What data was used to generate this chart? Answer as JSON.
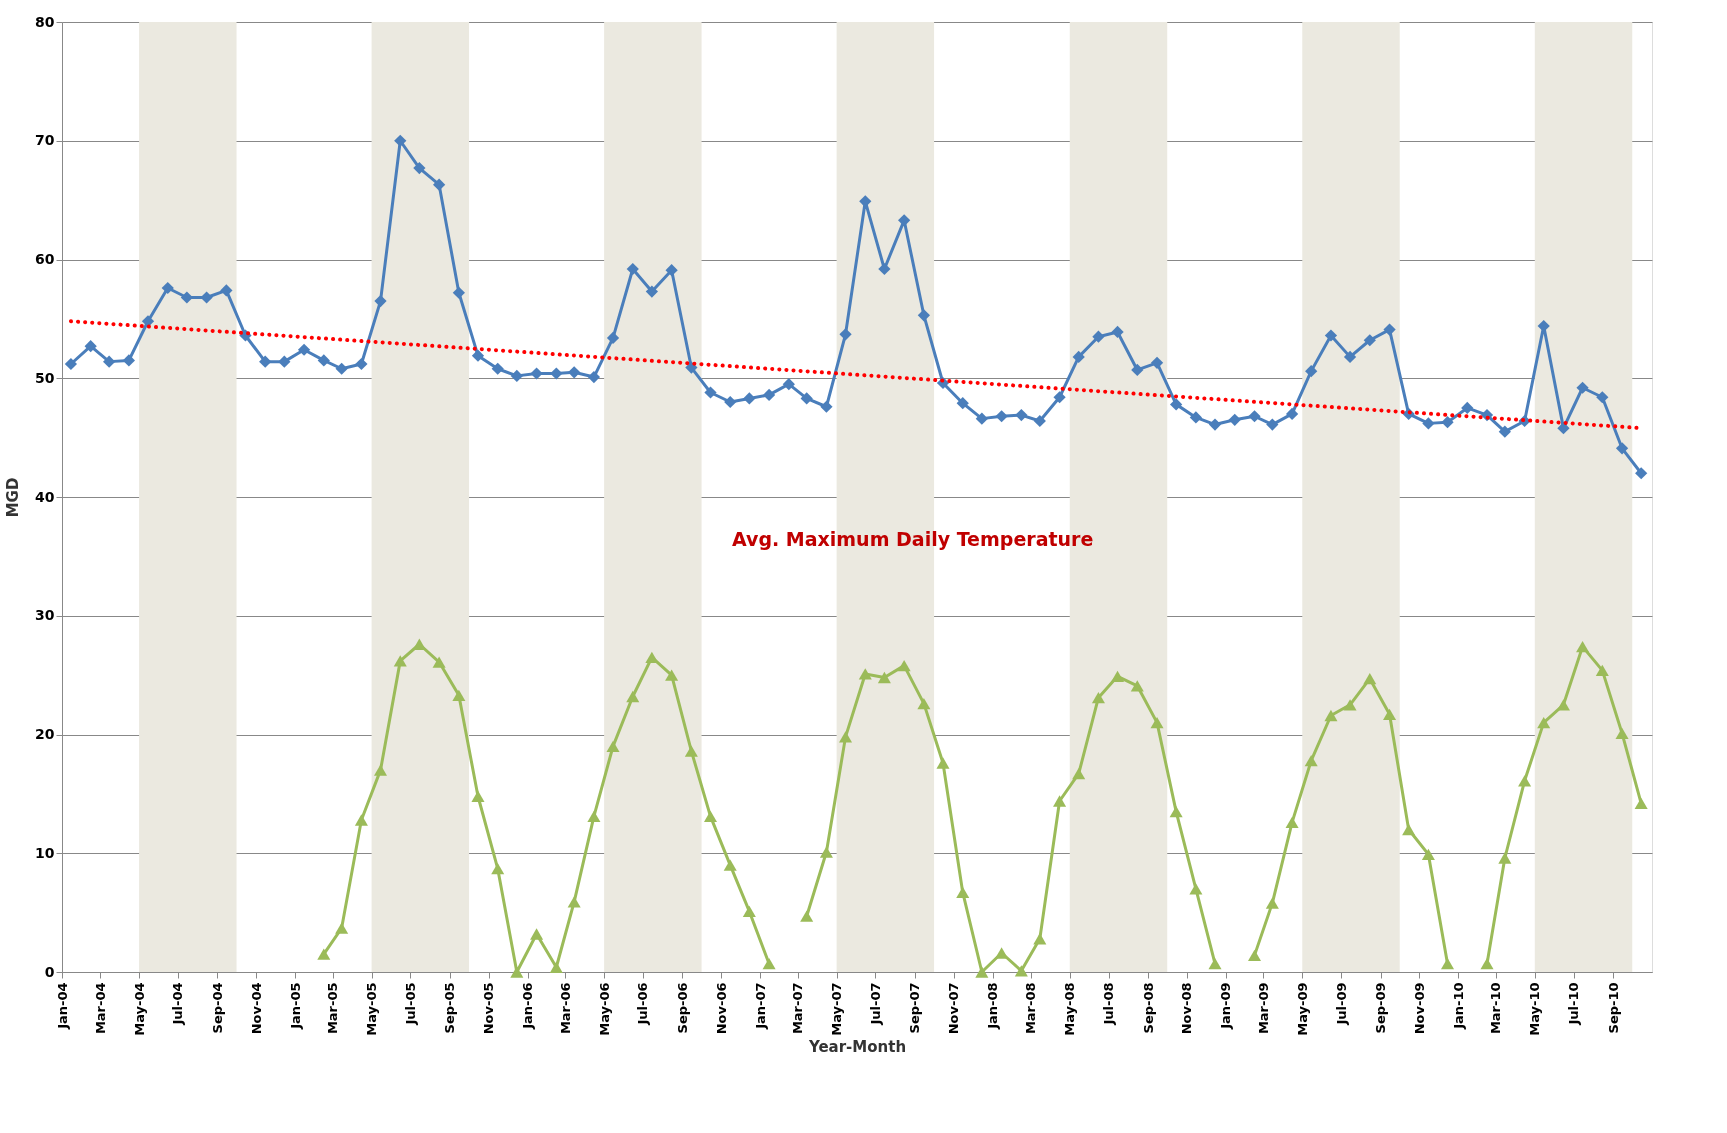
{
  "chart_data": {
    "type": "line",
    "xlabel": "Year-Month",
    "ylabel": "MGD",
    "x": [
      "2004-01-15",
      "2004-02-15",
      "2004-03-15",
      "2004-04-15",
      "2004-05-15",
      "2004-06-15",
      "2004-07-15",
      "2004-08-15",
      "2004-09-15",
      "2004-10-15",
      "2004-11-15",
      "2004-12-15",
      "2005-01-15",
      "2005-02-15",
      "2005-03-15",
      "2005-04-15",
      "2005-05-15",
      "2005-06-15",
      "2005-07-15",
      "2005-08-15",
      "2005-09-15",
      "2005-10-15",
      "2005-11-15",
      "2005-12-15",
      "2006-01-15",
      "2006-02-15",
      "2006-03-15",
      "2006-04-15",
      "2006-05-15",
      "2006-06-15",
      "2006-07-15",
      "2006-08-15",
      "2006-09-15",
      "2006-10-15",
      "2006-11-15",
      "2006-12-15",
      "2007-01-15",
      "2007-02-15",
      "2007-03-15",
      "2007-04-15",
      "2007-05-15",
      "2007-06-15",
      "2007-07-15",
      "2007-08-15",
      "2007-09-15",
      "2007-10-15",
      "2007-11-15",
      "2007-12-15",
      "2008-01-15",
      "2008-02-15",
      "2008-03-15",
      "2008-04-15",
      "2008-05-15",
      "2008-06-15",
      "2008-07-15",
      "2008-08-15",
      "2008-09-15",
      "2008-10-15",
      "2008-11-15",
      "2008-12-15",
      "2009-01-15",
      "2009-02-15",
      "2009-03-15",
      "2009-04-15",
      "2009-05-15",
      "2009-06-15",
      "2009-07-15",
      "2009-08-15",
      "2009-09-15",
      "2009-10-15",
      "2009-11-15",
      "2009-12-15",
      "2010-01-15",
      "2010-02-15",
      "2010-03-15",
      "2010-04-15",
      "2010-05-15",
      "2010-06-15",
      "2010-07-15",
      "2010-08-15",
      "2010-09-15",
      "2010-10-15"
    ],
    "series": [
      {
        "color": "#4a7ebb",
        "marker": "diamond",
        "values": [
          51.2,
          52.7,
          51.4,
          51.5,
          54.8,
          57.6,
          56.8,
          56.8,
          57.4,
          53.6,
          51.4,
          51.4,
          52.4,
          51.5,
          50.8,
          51.2,
          56.5,
          70.0,
          67.7,
          66.3,
          57.2,
          51.9,
          50.8,
          50.2,
          50.4,
          50.4,
          50.5,
          50.1,
          53.4,
          59.2,
          57.3,
          59.1,
          50.9,
          48.8,
          48.0,
          48.3,
          48.6,
          49.5,
          48.3,
          47.6,
          53.7,
          64.9,
          59.2,
          63.3,
          55.3,
          49.6,
          47.9,
          46.6,
          46.8,
          46.9,
          46.4,
          48.4,
          51.8,
          53.5,
          53.9,
          50.7,
          51.3,
          47.8,
          46.7,
          46.1,
          46.5,
          46.8,
          46.1,
          47.0,
          50.6,
          53.6,
          51.8,
          53.2,
          54.1,
          47.0,
          46.2,
          46.3,
          47.5,
          46.9,
          45.5,
          46.4,
          54.4,
          45.8,
          49.2,
          48.4,
          44.1,
          42.0
        ]
      },
      {
        "color": "#9bbb59",
        "marker": "triangle",
        "values": [
          null,
          null,
          null,
          null,
          null,
          null,
          null,
          null,
          null,
          null,
          null,
          null,
          null,
          1.5,
          3.7,
          12.8,
          17.0,
          26.2,
          27.6,
          26.1,
          23.3,
          14.8,
          8.7,
          0.0,
          3.2,
          0.4,
          5.9,
          13.1,
          19.0,
          23.2,
          26.5,
          25.0,
          18.6,
          13.1,
          9.0,
          5.1,
          0.7,
          null,
          4.7,
          10.1,
          19.8,
          25.1,
          24.8,
          25.8,
          22.6,
          17.6,
          6.7,
          0.0,
          1.6,
          0.1,
          2.8,
          14.4,
          16.7,
          23.1,
          24.9,
          24.1,
          21.0,
          13.5,
          7.0,
          0.7,
          null,
          1.4,
          5.8,
          12.6,
          17.8,
          21.6,
          22.5,
          24.7,
          21.7,
          12.0,
          9.9,
          0.7,
          null,
          0.7,
          9.6,
          16.1,
          21.0,
          22.5,
          27.4,
          25.4,
          20.1,
          14.2
        ]
      },
      {
        "color": "#ff0000",
        "marker": "none",
        "line_style": "dotted",
        "x": [
          "2004-01-15",
          "2010-10-15"
        ],
        "values": [
          54.8,
          45.8
        ]
      }
    ],
    "bands": [
      {
        "axis": "x",
        "from": "2004-05",
        "to": "2004-10",
        "color": "#ebe9e0"
      },
      {
        "axis": "x",
        "from": "2005-05",
        "to": "2005-10",
        "color": "#ebe9e0"
      },
      {
        "axis": "x",
        "from": "2006-05",
        "to": "2006-10",
        "color": "#ebe9e0"
      },
      {
        "axis": "x",
        "from": "2007-05",
        "to": "2007-10",
        "color": "#ebe9e0"
      },
      {
        "axis": "x",
        "from": "2008-05",
        "to": "2008-10",
        "color": "#ebe9e0"
      },
      {
        "axis": "x",
        "from": "2009-05",
        "to": "2009-10",
        "color": "#ebe9e0"
      },
      {
        "axis": "x",
        "from": "2010-05",
        "to": "2010-10",
        "color": "#ebe9e0"
      }
    ],
    "annotations": [
      "Avg. Maximum Daily Temperature"
    ],
    "xlim": [
      "2004-01-01",
      "2010-11-01"
    ],
    "xticks": [
      {
        "value": "2004-01",
        "label": "Jan-04"
      },
      {
        "value": "2004-03",
        "label": "Mar-04"
      },
      {
        "value": "2004-05",
        "label": "May-04"
      },
      {
        "value": "2004-07",
        "label": "Jul-04"
      },
      {
        "value": "2004-09",
        "label": "Sep-04"
      },
      {
        "value": "2004-11",
        "label": "Nov-04"
      },
      {
        "value": "2005-01",
        "label": "Jan-05"
      },
      {
        "value": "2005-03",
        "label": "Mar-05"
      },
      {
        "value": "2005-05",
        "label": "May-05"
      },
      {
        "value": "2005-07",
        "label": "Jul-05"
      },
      {
        "value": "2005-09",
        "label": "Sep-05"
      },
      {
        "value": "2005-11",
        "label": "Nov-05"
      },
      {
        "value": "2006-01",
        "label": "Jan-06"
      },
      {
        "value": "2006-03",
        "label": "Mar-06"
      },
      {
        "value": "2006-05",
        "label": "May-06"
      },
      {
        "value": "2006-07",
        "label": "Jul-06"
      },
      {
        "value": "2006-09",
        "label": "Sep-06"
      },
      {
        "value": "2006-11",
        "label": "Nov-06"
      },
      {
        "value": "2007-01",
        "label": "Jan-07"
      },
      {
        "value": "2007-03",
        "label": "Mar-07"
      },
      {
        "value": "2007-05",
        "label": "May-07"
      },
      {
        "value": "2007-07",
        "label": "Jul-07"
      },
      {
        "value": "2007-09",
        "label": "Sep-07"
      },
      {
        "value": "2007-11",
        "label": "Nov-07"
      },
      {
        "value": "2008-01",
        "label": "Jan-08"
      },
      {
        "value": "2008-03",
        "label": "Mar-08"
      },
      {
        "value": "2008-05",
        "label": "May-08"
      },
      {
        "value": "2008-07",
        "label": "Jul-08"
      },
      {
        "value": "2008-09",
        "label": "Sep-08"
      },
      {
        "value": "2008-11",
        "label": "Nov-08"
      },
      {
        "value": "2009-01",
        "label": "Jan-09"
      },
      {
        "value": "2009-03",
        "label": "Mar-09"
      },
      {
        "value": "2009-05",
        "label": "May-09"
      },
      {
        "value": "2009-07",
        "label": "Jul-09"
      },
      {
        "value": "2009-09",
        "label": "Sep-09"
      },
      {
        "value": "2009-11",
        "label": "Nov-09"
      },
      {
        "value": "2010-01",
        "label": "Jan-10"
      },
      {
        "value": "2010-03",
        "label": "Mar-10"
      },
      {
        "value": "2010-05",
        "label": "May-10"
      },
      {
        "value": "2010-07",
        "label": "Jul-10"
      },
      {
        "value": "2010-09",
        "label": "Sep-10"
      }
    ],
    "ylim": [
      0,
      80
    ],
    "yticks": [
      0,
      10,
      20,
      30,
      40,
      50,
      60,
      70,
      80
    ],
    "grid": "y",
    "legend": false
  }
}
